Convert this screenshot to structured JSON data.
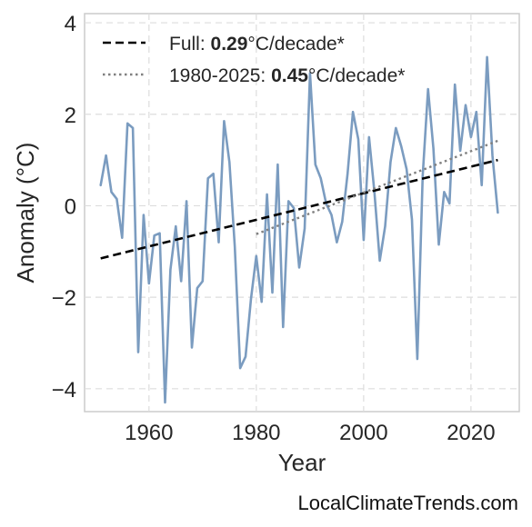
{
  "chart_data": {
    "type": "line",
    "xlabel": "Year",
    "ylabel": "Anomaly (°C)",
    "xlim": [
      1948,
      2029
    ],
    "ylim": [
      -4.5,
      4.2
    ],
    "xticks": [
      1960,
      1980,
      2000,
      2020
    ],
    "yticks": [
      -4,
      -2,
      0,
      2,
      4
    ],
    "ytick_labels": [
      "−4",
      "−2",
      "0",
      "2",
      "4"
    ],
    "grid": true,
    "legend_position": "top-left",
    "legend": [
      {
        "prefix": "Full: ",
        "value": "0.29",
        "suffix": "°C/decade*",
        "style": "dashed",
        "color": "#000000"
      },
      {
        "prefix": "1980-2025: ",
        "value": "0.45",
        "suffix": "°C/decade*",
        "style": "dotted",
        "color": "#808080"
      }
    ],
    "series": [
      {
        "color": "#7b9cc0",
        "x": [
          1951,
          1952,
          1953,
          1954,
          1955,
          1956,
          1957,
          1958,
          1959,
          1960,
          1961,
          1962,
          1963,
          1964,
          1965,
          1966,
          1967,
          1968,
          1969,
          1970,
          1971,
          1972,
          1973,
          1974,
          1975,
          1976,
          1977,
          1978,
          1979,
          1980,
          1981,
          1982,
          1983,
          1984,
          1985,
          1986,
          1987,
          1988,
          1989,
          1990,
          1991,
          1992,
          1993,
          1994,
          1995,
          1996,
          1997,
          1998,
          1999,
          2000,
          2001,
          2002,
          2003,
          2004,
          2005,
          2006,
          2007,
          2008,
          2009,
          2010,
          2011,
          2012,
          2013,
          2014,
          2015,
          2016,
          2017,
          2018,
          2019,
          2020,
          2021,
          2022,
          2023,
          2024,
          2025
        ],
        "y": [
          0.45,
          1.1,
          0.3,
          0.15,
          -0.7,
          1.8,
          1.7,
          -3.2,
          -0.2,
          -1.7,
          -0.65,
          -0.6,
          -4.3,
          -1.4,
          -0.45,
          -1.65,
          0.1,
          -3.1,
          -1.8,
          -1.65,
          0.6,
          0.7,
          -0.8,
          1.85,
          0.95,
          -0.9,
          -3.55,
          -3.3,
          -2.05,
          -1.1,
          -2.1,
          0.25,
          -1.9,
          0.9,
          -2.65,
          0.1,
          -0.05,
          -1.35,
          -0.5,
          2.9,
          0.9,
          0.6,
          0.05,
          -0.2,
          -0.8,
          -0.35,
          0.7,
          2.05,
          1.45,
          -0.75,
          1.5,
          0.3,
          -1.2,
          -0.45,
          0.95,
          1.7,
          1.3,
          0.8,
          -0.3,
          -3.35,
          0.65,
          2.55,
          1.25,
          -0.85,
          0.3,
          0.05,
          2.65,
          1.2,
          2.2,
          1.5,
          2.05,
          0.45,
          3.25,
          1.1,
          -0.15
        ]
      }
    ],
    "trendlines": [
      {
        "style": "dashed",
        "color": "#000000",
        "x": [
          1951,
          2025
        ],
        "y": [
          -1.15,
          1.0
        ]
      },
      {
        "style": "dotted",
        "color": "#808080",
        "x": [
          1980,
          2025
        ],
        "y": [
          -0.62,
          1.42
        ]
      }
    ]
  },
  "watermark": "LocalClimateTrends.com"
}
